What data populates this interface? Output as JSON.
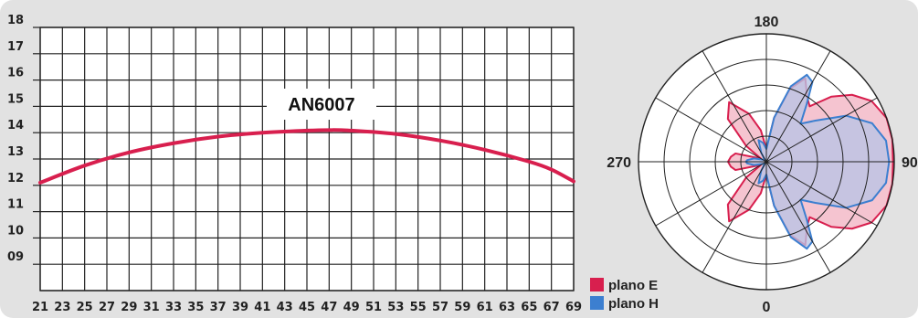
{
  "chart_data": [
    {
      "type": "line",
      "annotation": "AN6007",
      "x_ticks": [
        "21",
        "23",
        "25",
        "27",
        "29",
        "31",
        "33",
        "35",
        "37",
        "39",
        "41",
        "43",
        "45",
        "47",
        "49",
        "51",
        "53",
        "55",
        "57",
        "59",
        "61",
        "63",
        "65",
        "67",
        "69"
      ],
      "y_ticks": [
        "09",
        "10",
        "11",
        "12",
        "13",
        "14",
        "15",
        "16",
        "17",
        "18"
      ],
      "xlim": [
        21,
        69
      ],
      "ylim": [
        8,
        18
      ],
      "grid": true,
      "series": [
        {
          "color": "#d81f4e",
          "x": [
            21,
            25,
            29,
            33,
            37,
            41,
            45,
            47,
            49,
            53,
            57,
            61,
            65,
            67,
            69
          ],
          "y": [
            12.1,
            12.75,
            13.25,
            13.6,
            13.85,
            14.0,
            14.08,
            14.1,
            14.08,
            13.95,
            13.7,
            13.35,
            12.9,
            12.6,
            12.15
          ]
        }
      ]
    },
    {
      "type": "polar",
      "angle_labels": {
        "top": "180",
        "right": "90",
        "bottom": "0",
        "left": "270"
      },
      "rings": 5,
      "radial_lines_every_deg": 30,
      "legend": [
        {
          "label": "plano E",
          "color": "#d81f4e"
        },
        {
          "label": "plano H",
          "color": "#3c7fd0"
        }
      ],
      "series": [
        {
          "name": "plano E",
          "color": "#d81f4e",
          "fill": "#f2b3c3",
          "points": [
            [
              0,
              0.1
            ],
            [
              10,
              0.35
            ],
            [
              18,
              0.6
            ],
            [
              25,
              0.72
            ],
            [
              32,
              0.6
            ],
            [
              38,
              0.55
            ],
            [
              45,
              0.72
            ],
            [
              52,
              0.85
            ],
            [
              60,
              0.95
            ],
            [
              70,
              1.0
            ],
            [
              80,
              1.0
            ],
            [
              90,
              0.99
            ],
            [
              100,
              1.0
            ],
            [
              110,
              1.0
            ],
            [
              120,
              0.95
            ],
            [
              128,
              0.85
            ],
            [
              135,
              0.72
            ],
            [
              142,
              0.55
            ],
            [
              148,
              0.6
            ],
            [
              155,
              0.72
            ],
            [
              162,
              0.6
            ],
            [
              170,
              0.35
            ],
            [
              180,
              0.1
            ],
            [
              190,
              0.25
            ],
            [
              200,
              0.4
            ],
            [
              212,
              0.55
            ],
            [
              222,
              0.45
            ],
            [
              232,
              0.2
            ],
            [
              240,
              0.05
            ],
            [
              255,
              0.25
            ],
            [
              262,
              0.28
            ],
            [
              270,
              0.3
            ],
            [
              278,
              0.28
            ],
            [
              285,
              0.25
            ],
            [
              300,
              0.05
            ],
            [
              308,
              0.2
            ],
            [
              318,
              0.45
            ],
            [
              328,
              0.55
            ],
            [
              340,
              0.4
            ],
            [
              350,
              0.25
            ],
            [
              360,
              0.1
            ]
          ]
        },
        {
          "name": "plano H",
          "color": "#3c7fd0",
          "fill": "#b9c4e6",
          "points": [
            [
              0,
              0.1
            ],
            [
              10,
              0.35
            ],
            [
              18,
              0.62
            ],
            [
              25,
              0.75
            ],
            [
              30,
              0.72
            ],
            [
              35,
              0.55
            ],
            [
              42,
              0.4
            ],
            [
              50,
              0.5
            ],
            [
              60,
              0.72
            ],
            [
              70,
              0.88
            ],
            [
              80,
              0.95
            ],
            [
              90,
              0.96
            ],
            [
              100,
              0.95
            ],
            [
              110,
              0.88
            ],
            [
              120,
              0.72
            ],
            [
              130,
              0.5
            ],
            [
              138,
              0.4
            ],
            [
              145,
              0.55
            ],
            [
              150,
              0.72
            ],
            [
              155,
              0.75
            ],
            [
              162,
              0.62
            ],
            [
              170,
              0.35
            ],
            [
              180,
              0.1
            ],
            [
              190,
              0.15
            ],
            [
              200,
              0.18
            ],
            [
              210,
              0.08
            ],
            [
              220,
              0.02
            ],
            [
              255,
              0.1
            ],
            [
              265,
              0.15
            ],
            [
              270,
              0.16
            ],
            [
              275,
              0.15
            ],
            [
              285,
              0.1
            ],
            [
              320,
              0.02
            ],
            [
              330,
              0.08
            ],
            [
              340,
              0.18
            ],
            [
              350,
              0.15
            ],
            [
              360,
              0.1
            ]
          ]
        }
      ]
    }
  ]
}
